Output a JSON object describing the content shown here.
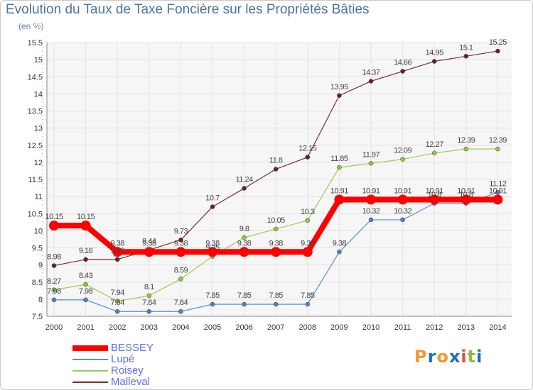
{
  "chart_data": {
    "type": "line",
    "title": "Evolution du Taux de Taxe Foncière sur les Propriétés Bâties",
    "subtitle": "(en %)",
    "xlabel": "",
    "ylabel": "",
    "ylim": [
      7.5,
      15.5
    ],
    "y_ticks": [
      "7.5",
      "8",
      "8.5",
      "9",
      "9.5",
      "10",
      "10.5",
      "11",
      "11.5",
      "12",
      "12.5",
      "13",
      "13.5",
      "14",
      "14.5",
      "15",
      "15.5"
    ],
    "categories": [
      "2000",
      "2001",
      "2002",
      "2003",
      "2004",
      "2005",
      "2006",
      "2007",
      "2008",
      "2009",
      "2010",
      "2011",
      "2012",
      "2013",
      "2014"
    ],
    "series": [
      {
        "name": "BESSEY",
        "values": [
          10.15,
          10.15,
          9.38,
          9.38,
          9.38,
          9.38,
          9.38,
          9.38,
          9.38,
          10.91,
          10.91,
          10.91,
          10.91,
          10.91,
          10.91
        ],
        "labels": [
          "10.15",
          "10.15",
          "9.38",
          "9.38",
          "9.38",
          "9.38",
          "9.38",
          "9.38",
          "9.38",
          "10.91",
          "10.91",
          "10.91",
          "10.91",
          "10.91",
          "10.91"
        ],
        "color": "#ff0000"
      },
      {
        "name": "Lupé",
        "values": [
          7.98,
          7.98,
          7.64,
          7.64,
          7.64,
          7.85,
          7.85,
          7.85,
          7.85,
          9.38,
          10.32,
          10.32,
          10.8,
          10.8,
          11.12
        ],
        "labels": [
          "7.98",
          "7.98",
          "7.64",
          "7.64",
          "7.64",
          "7.85",
          "7.85",
          "7.85",
          "7.85",
          "9.38",
          "10.32",
          "10.32",
          "10.8",
          "10.8",
          "11.12"
        ],
        "color": "#5b93c7"
      },
      {
        "name": "Roisey",
        "values": [
          8.27,
          8.43,
          7.94,
          8.1,
          8.59,
          9.25,
          9.8,
          10.05,
          10.3,
          11.85,
          11.97,
          12.09,
          12.27,
          12.39,
          12.39
        ],
        "labels": [
          "8.27",
          "8.43",
          "7.94",
          "8.1",
          "8.59",
          "9.25",
          "9.8",
          "10.05",
          "10.3",
          "11.85",
          "11.97",
          "12.09",
          "12.27",
          "12.39",
          "12.39"
        ],
        "color": "#99cc55"
      },
      {
        "name": "Malleval",
        "values": [
          8.98,
          9.16,
          9.16,
          9.44,
          9.73,
          10.7,
          11.24,
          11.8,
          12.15,
          13.95,
          14.37,
          14.66,
          14.95,
          15.1,
          15.25
        ],
        "labels": [
          "8.98",
          "9.16",
          "9.16",
          "9.44",
          "9.73",
          "10.7",
          "11.24",
          "11.8",
          "12.15",
          "13.95",
          "14.37",
          "14.66",
          "14.95",
          "15.1",
          "15.25"
        ],
        "color": "#7a2e2e"
      }
    ]
  },
  "logo": {
    "chars": [
      "P",
      "r",
      "o",
      "x",
      "i",
      "t",
      "i"
    ],
    "colors": [
      "#f2992e",
      "#1e6fb4",
      "#f2992e",
      "#1e6fb4",
      "#e84b3c",
      "#8bbf3d",
      "#1e6fb4"
    ]
  }
}
